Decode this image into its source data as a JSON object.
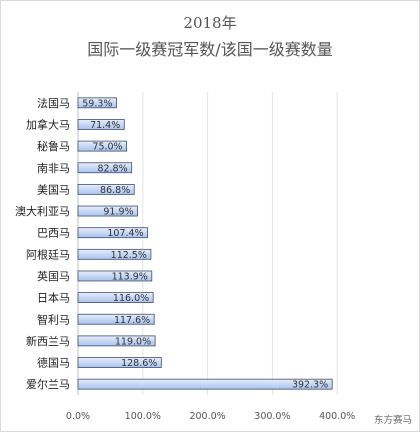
{
  "chart_data": {
    "type": "bar",
    "orientation": "horizontal",
    "title": "2018年",
    "subtitle": "国际一级赛冠军数/该国一级赛数量",
    "categories": [
      "法国马",
      "加拿大马",
      "秘鲁马",
      "南非马",
      "美国马",
      "澳大利亚马",
      "巴西马",
      "阿根廷马",
      "英国马",
      "日本马",
      "智利马",
      "新西兰马",
      "德国马",
      "爱尔兰马"
    ],
    "values": [
      59.3,
      71.4,
      75.0,
      82.8,
      86.8,
      91.9,
      107.4,
      112.5,
      113.9,
      116.0,
      117.6,
      119.0,
      128.6,
      392.3
    ],
    "value_labels": [
      "59.3%",
      "71.4%",
      "75.0%",
      "82.8%",
      "86.8%",
      "91.9%",
      "107.4%",
      "112.5%",
      "113.9%",
      "116.0%",
      "117.6%",
      "119.0%",
      "128.6%",
      "392.3%"
    ],
    "xlim": [
      0,
      500
    ],
    "xticks": [
      "0.0%",
      "100.0%",
      "200.0%",
      "300.0%",
      "400.0%"
    ],
    "grid": true,
    "bar_fill_top": "#e6eefb",
    "bar_fill_bottom": "#a9c2ee",
    "bar_stroke": "#3f4f6f"
  },
  "watermark": "东方赛马"
}
